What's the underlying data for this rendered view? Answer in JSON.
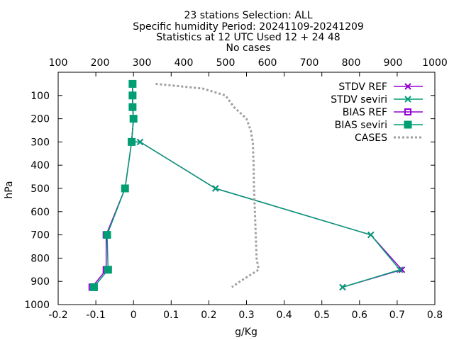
{
  "chart_data": {
    "type": "line",
    "title_lines": [
      "23 stations Selection: ALL",
      "Specific humidity  Period: 20241109-20241209",
      "Statistics at 12 UTC  Used 12 + 24 48",
      "No cases"
    ],
    "xlabel": "g/Kg",
    "ylabel": "hPa",
    "xlim": [
      -0.2,
      0.8
    ],
    "ylim": [
      0,
      1000
    ],
    "y_inverted": true,
    "x2lim": [
      100,
      1000
    ],
    "x_ticks": [
      "-0.2",
      "-0.1",
      "0",
      "0.1",
      "0.2",
      "0.3",
      "0.4",
      "0.5",
      "0.6",
      "0.7",
      "0.8"
    ],
    "x_tick_values": [
      -0.2,
      -0.1,
      0,
      0.1,
      0.2,
      0.3,
      0.4,
      0.5,
      0.6,
      0.7,
      0.8
    ],
    "y_ticks": [
      "100",
      "200",
      "300",
      "400",
      "500",
      "600",
      "700",
      "800",
      "900",
      "1000"
    ],
    "y_tick_values": [
      100,
      200,
      300,
      400,
      500,
      600,
      700,
      800,
      900,
      1000
    ],
    "x2_ticks": [
      "100",
      "200",
      "300",
      "400",
      "500",
      "600",
      "700",
      "800",
      "900",
      "1000"
    ],
    "x2_tick_values": [
      100,
      200,
      300,
      400,
      500,
      600,
      700,
      800,
      900,
      1000
    ],
    "legend_position": "top-right",
    "series": [
      {
        "name": "STDV REF",
        "color": "#9400d3",
        "marker": "x",
        "dash": "",
        "points": [
          [
            -0.0025,
            50
          ],
          [
            -0.0025,
            100
          ],
          [
            -0.0025,
            150
          ],
          [
            0.0,
            200
          ],
          [
            -0.005,
            300
          ],
          [
            0.0175,
            300
          ],
          [
            0.2175,
            500
          ],
          [
            0.63,
            700
          ],
          [
            0.7125,
            850
          ],
          [
            0.555,
            925
          ]
        ]
      },
      {
        "name": "STDV seviri",
        "color": "#009e73",
        "marker": "x",
        "dash": "",
        "points": [
          [
            -0.0025,
            50
          ],
          [
            -0.0025,
            100
          ],
          [
            -0.0025,
            150
          ],
          [
            0.0,
            200
          ],
          [
            -0.005,
            300
          ],
          [
            0.0175,
            300
          ],
          [
            0.2175,
            500
          ],
          [
            0.63,
            700
          ],
          [
            0.707,
            850
          ],
          [
            0.555,
            925
          ]
        ]
      },
      {
        "name": "BIAS REF",
        "color": "#9400d3",
        "marker": "square-open",
        "dash": "",
        "points": [
          [
            -0.0025,
            50
          ],
          [
            -0.0025,
            100
          ],
          [
            -0.0025,
            150
          ],
          [
            0.0,
            200
          ],
          [
            -0.005,
            300
          ],
          [
            -0.0225,
            500
          ],
          [
            -0.0725,
            700
          ],
          [
            -0.0725,
            850
          ],
          [
            -0.11,
            925
          ]
        ]
      },
      {
        "name": "BIAS seviri",
        "color": "#009e73",
        "marker": "square-filled",
        "dash": "",
        "points": [
          [
            -0.0025,
            50
          ],
          [
            -0.0025,
            100
          ],
          [
            -0.0025,
            150
          ],
          [
            0.0,
            200
          ],
          [
            -0.005,
            300
          ],
          [
            -0.0225,
            500
          ],
          [
            -0.07,
            700
          ],
          [
            -0.0675,
            850
          ],
          [
            -0.105,
            925
          ]
        ]
      },
      {
        "name": "CASES",
        "color": "#a0a0a0",
        "marker": "none",
        "dash": "3,3",
        "axis": "x2",
        "points": [
          [
            333,
            50
          ],
          [
            445,
            70
          ],
          [
            500,
            100
          ],
          [
            520,
            150
          ],
          [
            550,
            200
          ],
          [
            560,
            250
          ],
          [
            565,
            300
          ],
          [
            567,
            400
          ],
          [
            568,
            500
          ],
          [
            570,
            600
          ],
          [
            572,
            700
          ],
          [
            574,
            800
          ],
          [
            579,
            850
          ],
          [
            535,
            900
          ],
          [
            515,
            925
          ]
        ]
      }
    ]
  }
}
